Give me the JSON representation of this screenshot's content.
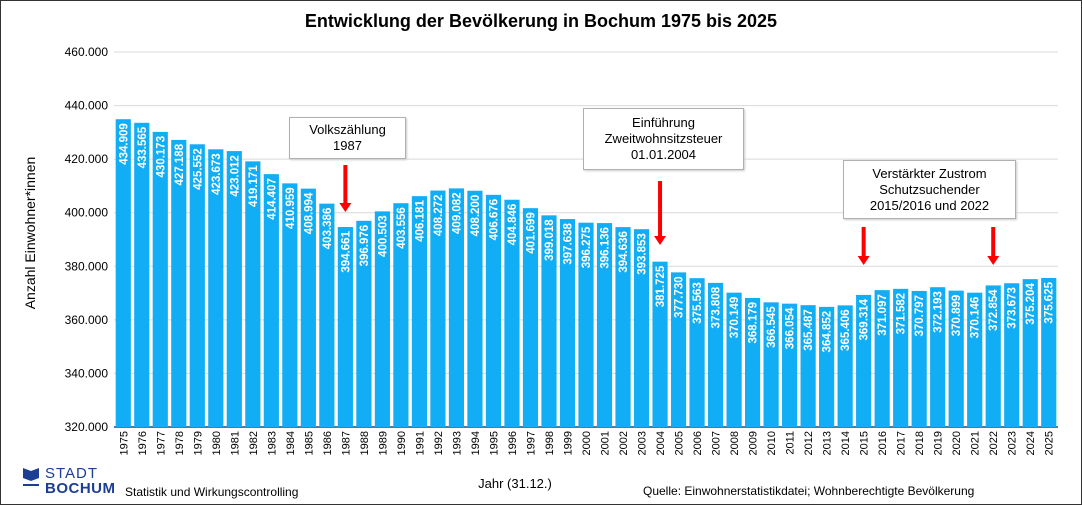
{
  "chart_data": {
    "type": "bar",
    "title": "Entwicklung der Bevölkerung in Bochum 1975 bis 2025",
    "xlabel": "Jahr (31.12.)",
    "ylabel": "Anzahl Einwohner*innen",
    "ylim": [
      320000,
      460000
    ],
    "yticks": [
      320000,
      340000,
      360000,
      380000,
      400000,
      420000,
      440000,
      460000
    ],
    "ytick_labels": [
      "320.000",
      "340.000",
      "360.000",
      "380.000",
      "400.000",
      "420.000",
      "440.000",
      "460.000"
    ],
    "grid": true,
    "bar_color": "#12aef5",
    "categories": [
      "1975",
      "1976",
      "1977",
      "1978",
      "1979",
      "1980",
      "1981",
      "1982",
      "1983",
      "1984",
      "1985",
      "1986",
      "1987",
      "1988",
      "1989",
      "1990",
      "1991",
      "1992",
      "1993",
      "1994",
      "1995",
      "1996",
      "1997",
      "1998",
      "1999",
      "2000",
      "2001",
      "2002",
      "2003",
      "2004",
      "2005",
      "2006",
      "2007",
      "2008",
      "2009",
      "2010",
      "2011",
      "2012",
      "2013",
      "2014",
      "2015",
      "2016",
      "2017",
      "2018",
      "2019",
      "2020",
      "2021",
      "2022",
      "2023",
      "2024",
      "2025"
    ],
    "values": [
      434909,
      433565,
      430173,
      427188,
      425552,
      423673,
      423012,
      419171,
      414407,
      410959,
      408994,
      403386,
      394661,
      396976,
      400503,
      403556,
      406181,
      408272,
      409082,
      408200,
      406676,
      404846,
      401699,
      399018,
      397638,
      396275,
      396136,
      394636,
      393853,
      381725,
      377730,
      375563,
      373808,
      370149,
      368179,
      366545,
      366054,
      365487,
      364852,
      365406,
      369314,
      371097,
      371582,
      370797,
      372193,
      370899,
      370146,
      372854,
      373673,
      375204,
      375625
    ],
    "data_labels": [
      "434.909",
      "433.565",
      "430.173",
      "427.188",
      "425.552",
      "423.673",
      "423.012",
      "419.171",
      "414.407",
      "410.959",
      "408.994",
      "403.386",
      "394.661",
      "396.976",
      "400.503",
      "403.556",
      "406.181",
      "408.272",
      "409.082",
      "408.200",
      "406.676",
      "404.846",
      "401.699",
      "399.018",
      "397.638",
      "396.275",
      "396.136",
      "394.636",
      "393.853",
      "381.725",
      "377.730",
      "375.563",
      "373.808",
      "370.149",
      "368.179",
      "366.545",
      "366.054",
      "365.487",
      "364.852",
      "365.406",
      "369.314",
      "371.097",
      "371.582",
      "370.797",
      "372.193",
      "370.899",
      "370.146",
      "372.854",
      "373.673",
      "375.204",
      "375.625"
    ],
    "annotations": [
      {
        "lines": [
          "Volkszählung",
          "1987"
        ],
        "arrow_years": [
          "1987"
        ]
      },
      {
        "lines": [
          "Einführung",
          "Zweitwohnsitzsteuer",
          "01.01.2004"
        ],
        "arrow_years": [
          "2004"
        ]
      },
      {
        "lines": [
          "Verstärkter Zustrom",
          "Schutzsuchender",
          "2015/2016 und 2022"
        ],
        "arrow_years": [
          "2015",
          "2022"
        ]
      }
    ],
    "arrow_color": "#ff0000"
  },
  "footer": {
    "logo_line1": "STADT",
    "logo_line2": "BOCHUM",
    "department": "Statistik und Wirkungscontrolling",
    "source": "Quelle: Einwohnerstatistikdatei;  Wohnberechtigte Bevölkerung"
  }
}
